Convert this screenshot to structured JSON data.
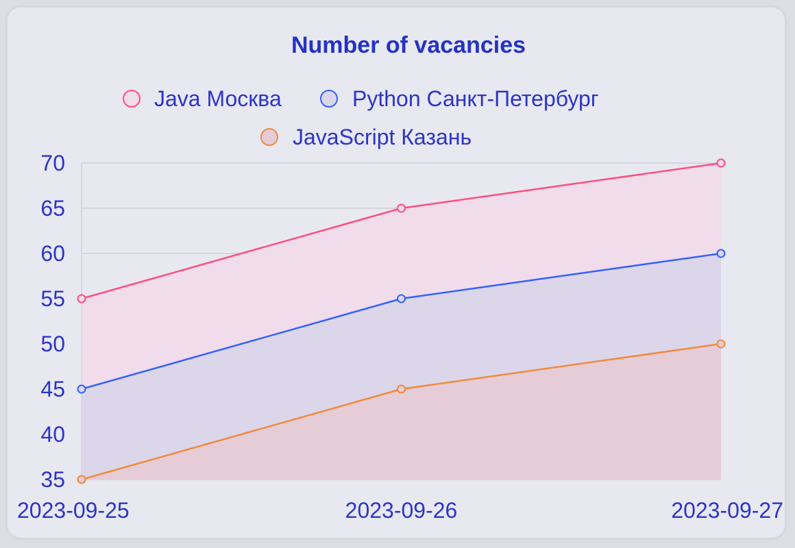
{
  "chart_data": {
    "type": "area",
    "title": "Number of vacancies",
    "categories": [
      "2023-09-25",
      "2023-09-26",
      "2023-09-27"
    ],
    "series": [
      {
        "name": "Java Москва",
        "values": [
          55,
          65,
          70
        ],
        "color": "#ff4d7e",
        "fill": "#f0dcea"
      },
      {
        "name": "Python Санкт-Петербург",
        "values": [
          45,
          55,
          60
        ],
        "color": "#3361ff",
        "fill": "#dcd6ea"
      },
      {
        "name": "JavaScript Казань",
        "values": [
          35,
          45,
          50
        ],
        "color": "#f08a3c",
        "fill": "#e6ccd6"
      }
    ],
    "yticks": [
      35,
      40,
      45,
      50,
      55,
      60,
      65,
      70
    ],
    "ylim": [
      35,
      70
    ],
    "grid": true,
    "legend_position": "top",
    "text_color": "#2b35c8",
    "title_color": "#2433c4"
  }
}
